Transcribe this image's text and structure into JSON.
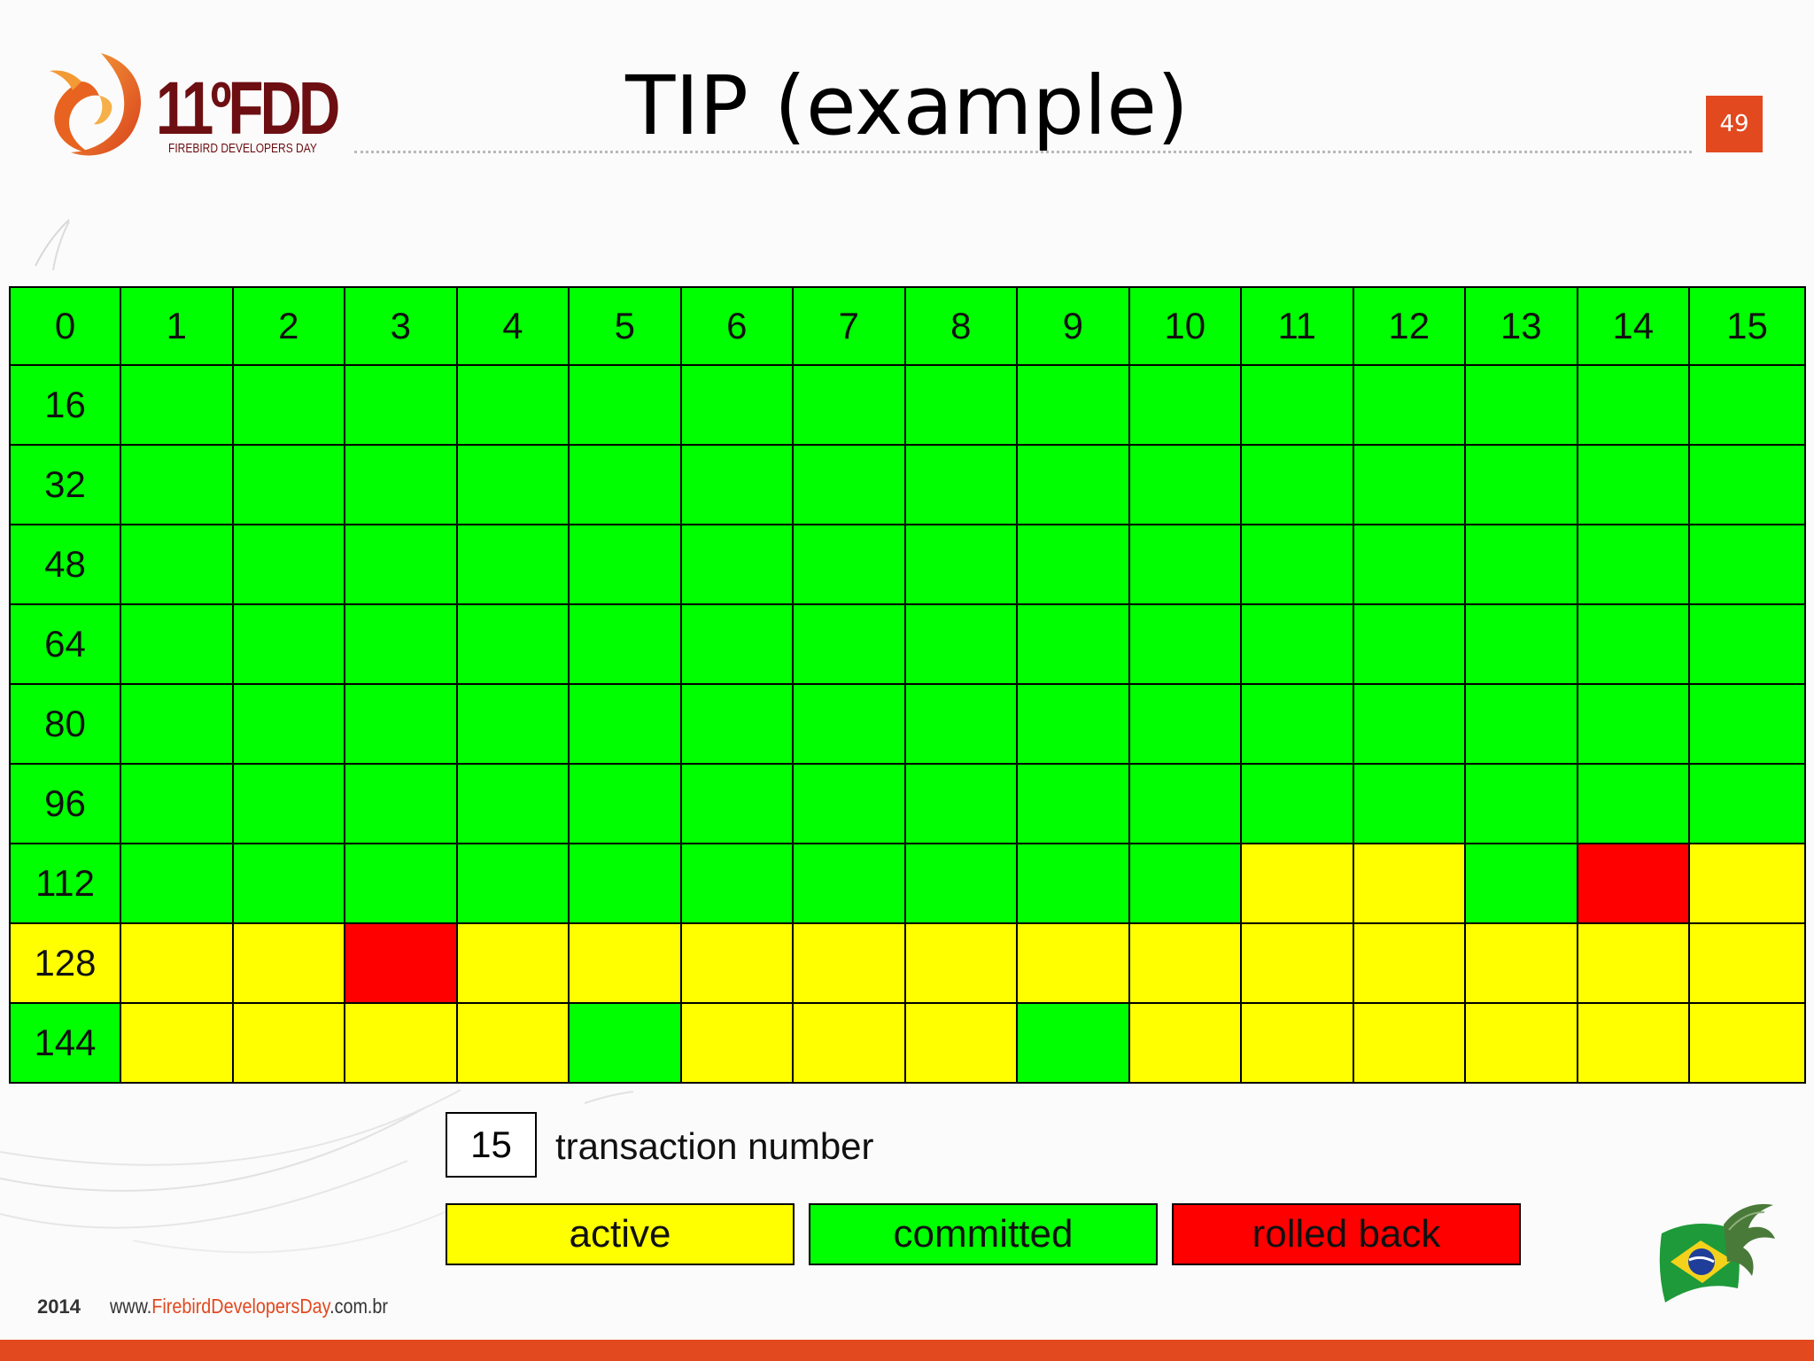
{
  "header": {
    "logo_number": "11ºFDD",
    "logo_subtitle": "FIREBIRD DEVELOPERS DAY",
    "title": "TIP (example)",
    "page_number": "49"
  },
  "grid": {
    "row_labels": [
      "0",
      "16",
      "32",
      "48",
      "64",
      "80",
      "96",
      "112",
      "128",
      "144"
    ],
    "column_labels": [
      "1",
      "2",
      "3",
      "4",
      "5",
      "6",
      "7",
      "8",
      "9",
      "10",
      "11",
      "12",
      "13",
      "14",
      "15"
    ],
    "rows": [
      [
        "c",
        "c",
        "c",
        "c",
        "c",
        "c",
        "c",
        "c",
        "c",
        "c",
        "c",
        "c",
        "c",
        "c",
        "c",
        "c"
      ],
      [
        "c",
        "c",
        "c",
        "c",
        "c",
        "c",
        "c",
        "c",
        "c",
        "c",
        "c",
        "c",
        "c",
        "c",
        "c",
        "c"
      ],
      [
        "c",
        "c",
        "c",
        "c",
        "c",
        "c",
        "c",
        "c",
        "c",
        "c",
        "c",
        "c",
        "c",
        "c",
        "c",
        "c"
      ],
      [
        "c",
        "c",
        "c",
        "c",
        "c",
        "c",
        "c",
        "c",
        "c",
        "c",
        "c",
        "c",
        "c",
        "c",
        "c",
        "c"
      ],
      [
        "c",
        "c",
        "c",
        "c",
        "c",
        "c",
        "c",
        "c",
        "c",
        "c",
        "c",
        "c",
        "c",
        "c",
        "c",
        "c"
      ],
      [
        "c",
        "c",
        "c",
        "c",
        "c",
        "c",
        "c",
        "c",
        "c",
        "c",
        "c",
        "c",
        "c",
        "c",
        "c",
        "c"
      ],
      [
        "c",
        "c",
        "c",
        "c",
        "c",
        "c",
        "c",
        "c",
        "c",
        "c",
        "c",
        "c",
        "c",
        "c",
        "c",
        "c"
      ],
      [
        "c",
        "c",
        "c",
        "c",
        "c",
        "c",
        "c",
        "c",
        "c",
        "c",
        "c",
        "a",
        "a",
        "c",
        "r",
        "a"
      ],
      [
        "a",
        "a",
        "a",
        "r",
        "a",
        "a",
        "a",
        "a",
        "a",
        "a",
        "a",
        "a",
        "a",
        "a",
        "a",
        "a"
      ],
      [
        "c",
        "a",
        "a",
        "a",
        "a",
        "c",
        "a",
        "a",
        "a",
        "c",
        "a",
        "a",
        "a",
        "a",
        "a",
        "a"
      ]
    ]
  },
  "legend": {
    "number_example": "15",
    "number_label": "transaction number",
    "items": [
      {
        "label": "active",
        "color": "#ffff00"
      },
      {
        "label": "committed",
        "color": "#00ff00"
      },
      {
        "label": "rolled back",
        "color": "#ff0000"
      }
    ]
  },
  "footer": {
    "year": "2014",
    "url_prefix": "www.",
    "url_highlight": "FirebirdDevelopersDay",
    "url_suffix": ".com.br"
  },
  "colors": {
    "brand_orange": "#e2491f",
    "logo_maroon": "#6d0f12",
    "committed": "#00ff00",
    "active": "#ffff00",
    "rolled_back": "#ff0000"
  },
  "icons": {
    "logo": "phoenix-logo-icon",
    "flag": "brazil-flag-phoenix-icon"
  }
}
